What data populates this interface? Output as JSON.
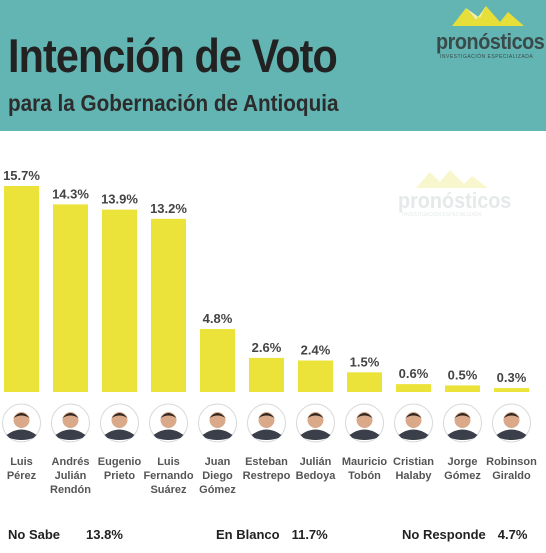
{
  "header": {
    "title": "Intención de Voto",
    "subtitle": "para la Gobernación de Antioquia"
  },
  "logo": {
    "name": "pronósticos",
    "tagline": "INVESTIGACIÓN ESPECIALIZADA"
  },
  "colors": {
    "header_bg": "#62b5b2",
    "bar": "#ece33a",
    "text": "#222222",
    "label": "#555555"
  },
  "chart_data": {
    "type": "bar",
    "categories": [
      [
        "Luis",
        "Pérez"
      ],
      [
        "Andrés",
        "Julián",
        "Rendón"
      ],
      [
        "Eugenio",
        "Prieto"
      ],
      [
        "Luis",
        "Fernando",
        "Suárez"
      ],
      [
        "Juan",
        "Diego",
        "Gómez"
      ],
      [
        "Esteban",
        "Restrepo"
      ],
      [
        "Julián",
        "Bedoya"
      ],
      [
        "Mauricio",
        "Tobón"
      ],
      [
        "Cristian",
        "Halaby"
      ],
      [
        "Jorge",
        "Gómez"
      ],
      [
        "Robinson",
        "Giraldo"
      ]
    ],
    "values": [
      15.7,
      14.3,
      13.9,
      13.2,
      4.8,
      2.6,
      2.4,
      1.5,
      0.6,
      0.5,
      0.3
    ],
    "value_labels": [
      "15.7%",
      "14.3%",
      "13.9%",
      "13.2%",
      "4.8%",
      "2.6%",
      "2.4%",
      "1.5%",
      "0.6%",
      "0.5%",
      "0.3%"
    ],
    "ylim": [
      0,
      15.7
    ],
    "grid": false
  },
  "footer": {
    "no_sabe": {
      "label": "No Sabe",
      "value": "13.8%"
    },
    "en_blanco": {
      "label": "En Blanco",
      "value": "11.7%"
    },
    "no_responde": {
      "label": "No Responde",
      "value": "4.7%"
    }
  }
}
